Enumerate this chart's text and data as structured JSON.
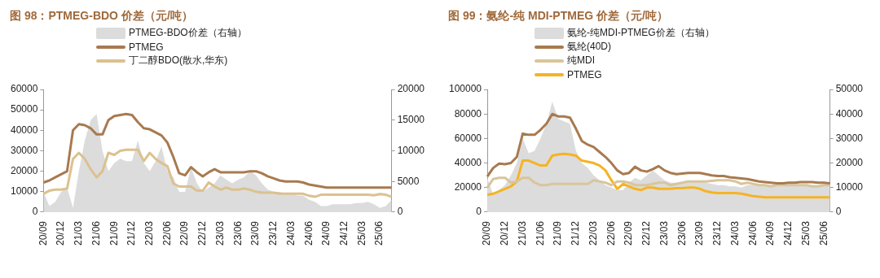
{
  "chart_data": [
    {
      "type": "line",
      "title": "图 98：PTMEG-BDO 价差（元/吨）",
      "legend": "top left",
      "grid": false,
      "categories": [
        "20/09",
        null,
        null,
        "20/12",
        null,
        null,
        "21/03",
        null,
        null,
        "21/06",
        null,
        null,
        "21/09",
        null,
        null,
        "21/12",
        null,
        null,
        "22/03",
        null,
        null,
        "22/06",
        null,
        null,
        "22/09",
        null,
        null,
        "22/12",
        null,
        null,
        "23/03",
        null,
        null,
        "23/06",
        null,
        null,
        "23/09",
        null,
        null,
        "23/12",
        null,
        null,
        "24/03",
        null,
        null,
        "24/06",
        null,
        null,
        "24/09",
        null,
        null,
        "24/12",
        null,
        null,
        "25/03",
        null,
        null,
        "25/06",
        null,
        null
      ],
      "ylim": [
        0,
        60000
      ],
      "yticks": [
        0,
        10000,
        20000,
        30000,
        40000,
        50000,
        60000
      ],
      "y2lim": [
        0,
        20000
      ],
      "y2ticks": [
        0,
        5000,
        10000,
        15000,
        20000
      ],
      "series": [
        {
          "name": "PTMEG-BDO价差（右轴）",
          "type": "area",
          "axis": "y2",
          "color": "#dcdcdc",
          "values": [
            3300,
            1000,
            1700,
            3300,
            4000,
            700,
            6700,
            11700,
            15000,
            16000,
            10000,
            6700,
            8000,
            8700,
            8300,
            8300,
            11700,
            8000,
            6700,
            8300,
            10700,
            6700,
            5700,
            3300,
            3300,
            7300,
            4700,
            3300,
            4000,
            4700,
            6000,
            5300,
            4700,
            5300,
            5700,
            6700,
            6000,
            4700,
            3700,
            3300,
            3300,
            3000,
            3000,
            2700,
            2700,
            2000,
            1700,
            1000,
            1000,
            1300,
            1300,
            1300,
            1300,
            1500,
            1500,
            1700,
            1300,
            700,
            1000,
            2000
          ]
        },
        {
          "name": "PTMEG",
          "type": "line",
          "color": "#a87a4f",
          "values": [
            14500,
            15500,
            17000,
            18500,
            20000,
            40000,
            43000,
            42500,
            41000,
            38000,
            38000,
            45000,
            47000,
            47500,
            48000,
            47500,
            44000,
            41000,
            40500,
            39000,
            37500,
            34000,
            27000,
            19000,
            18000,
            22000,
            19500,
            17500,
            19500,
            21000,
            19500,
            19500,
            19500,
            19500,
            19500,
            20000,
            20000,
            19000,
            17500,
            16500,
            15500,
            15000,
            15000,
            15000,
            14500,
            13500,
            13000,
            12500,
            12000,
            12000,
            12000,
            12000,
            12000,
            12000,
            12000,
            12000,
            12000,
            12000,
            12000,
            12000
          ]
        },
        {
          "name": "丁二醇BDO(散水,华东)",
          "type": "line",
          "color": "#dcc18f",
          "values": [
            9000,
            10500,
            11000,
            11000,
            11500,
            26000,
            29000,
            26000,
            21000,
            17000,
            20000,
            29000,
            28000,
            30000,
            30500,
            30500,
            30500,
            25000,
            29000,
            26000,
            24000,
            22500,
            14000,
            12500,
            12500,
            12500,
            10500,
            10500,
            14500,
            12500,
            11000,
            12000,
            11000,
            11000,
            11500,
            11000,
            10000,
            9500,
            9500,
            9500,
            9000,
            9000,
            9000,
            9000,
            9000,
            8000,
            7500,
            8500,
            8500,
            8500,
            8500,
            8500,
            8500,
            8500,
            8500,
            8500,
            8200,
            8800,
            8500,
            7500
          ]
        }
      ]
    },
    {
      "type": "line",
      "title": "图 99：氨纶-纯 MDI-PTMEG 价差（元/吨）",
      "legend": "top left",
      "grid": false,
      "categories": [
        "20/09",
        null,
        null,
        "20/12",
        null,
        null,
        "21/03",
        null,
        null,
        "21/06",
        null,
        null,
        "21/09",
        null,
        null,
        "21/12",
        null,
        null,
        "22/03",
        null,
        null,
        "22/06",
        null,
        null,
        "22/09",
        null,
        null,
        "22/12",
        null,
        null,
        "23/03",
        null,
        null,
        "23/06",
        null,
        null,
        "23/09",
        null,
        null,
        "23/12",
        null,
        null,
        "24/03",
        null,
        null,
        "24/06",
        null,
        null,
        "24/09",
        null,
        null,
        "24/12",
        null,
        null,
        "25/03",
        null,
        null,
        "25/06",
        null
      ],
      "ylim": [
        0,
        100000
      ],
      "yticks": [
        0,
        20000,
        40000,
        60000,
        80000,
        100000
      ],
      "y2lim": [
        0,
        50000
      ],
      "y2ticks": [
        0,
        10000,
        20000,
        30000,
        40000,
        50000
      ],
      "series": [
        {
          "name": "氨纶-纯MDI-PTMEG价差（右轴）",
          "type": "area",
          "axis": "y2",
          "color": "#dcdcdc",
          "values": [
            14000,
            7000,
            9000,
            11000,
            15000,
            20000,
            30000,
            24000,
            25000,
            30000,
            36000,
            45000,
            38000,
            37000,
            36000,
            25000,
            20000,
            18000,
            15000,
            13000,
            11000,
            10000,
            9000,
            9000,
            12000,
            14000,
            13000,
            15000,
            17000,
            15000,
            13000,
            12000,
            12000,
            12000,
            12500,
            12500,
            12500,
            12000,
            11500,
            11000,
            11000,
            10500,
            10500,
            10000,
            11000,
            11000,
            11000,
            11000,
            11000,
            11000,
            11000,
            11000,
            11000,
            11000,
            11000,
            11000,
            11000,
            11000,
            11000
          ]
        },
        {
          "name": "氨纶(40D)",
          "type": "line",
          "color": "#a87a4f",
          "values": [
            29000,
            36000,
            39500,
            39000,
            40000,
            45000,
            64000,
            63000,
            63000,
            67000,
            72000,
            80000,
            78000,
            78000,
            77000,
            68000,
            58000,
            55000,
            53000,
            49000,
            45000,
            40000,
            34000,
            31000,
            32000,
            37000,
            34000,
            33000,
            35000,
            37500,
            34000,
            32000,
            31000,
            31500,
            32000,
            32000,
            32000,
            31000,
            30000,
            29500,
            29500,
            28500,
            28000,
            27500,
            27000,
            26000,
            25000,
            24500,
            24000,
            23500,
            23500,
            24000,
            24000,
            24500,
            24500,
            24500,
            24000,
            24000,
            23500
          ]
        },
        {
          "name": "纯MDI",
          "type": "line",
          "color": "#d9c59c",
          "values": [
            20000,
            27000,
            28000,
            28000,
            24000,
            25000,
            28000,
            28000,
            24000,
            22000,
            22000,
            23000,
            23000,
            23000,
            23000,
            23000,
            23000,
            23000,
            26000,
            25000,
            24000,
            22000,
            25000,
            25000,
            24000,
            22000,
            22000,
            22000,
            23000,
            24000,
            24000,
            22000,
            23000,
            24000,
            25000,
            25000,
            25000,
            25000,
            25500,
            26000,
            26000,
            26000,
            25000,
            23000,
            24000,
            23000,
            22000,
            22000,
            21000,
            22000,
            22000,
            22000,
            22000,
            22000,
            22000,
            21000,
            21000,
            22000,
            22000
          ]
        },
        {
          "name": "PTMEG",
          "type": "line",
          "color": "#f5b324",
          "values": [
            14000,
            15000,
            17000,
            19000,
            21000,
            25000,
            42000,
            42000,
            40000,
            38000,
            38000,
            46000,
            47000,
            47500,
            47000,
            46000,
            42000,
            41000,
            40000,
            38000,
            34000,
            26000,
            19000,
            23000,
            21000,
            19000,
            18000,
            20000,
            20000,
            19000,
            19000,
            19000,
            19500,
            19500,
            20000,
            20000,
            19000,
            17000,
            16000,
            15500,
            15500,
            15500,
            15500,
            15000,
            14000,
            13000,
            12500,
            12000,
            12000,
            12000,
            12000,
            12000,
            12000,
            12000,
            12000,
            12000,
            12000,
            12000,
            12000
          ]
        }
      ]
    }
  ]
}
